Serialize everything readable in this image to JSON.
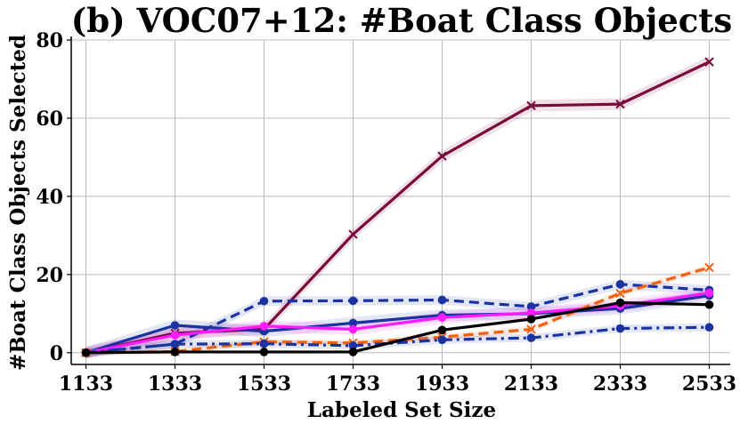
{
  "chart_data": {
    "type": "line",
    "title": "(b) VOC07+12: #Boat Class Objects",
    "xlabel": "Labeled Set Size",
    "ylabel": "#Boat Class Objects Selected",
    "x": [
      1133,
      1333,
      1533,
      1733,
      1933,
      2133,
      2333,
      2533
    ],
    "x_tick_labels": [
      "1133",
      "1333",
      "1533",
      "1733",
      "1933",
      "2133",
      "2333",
      "2533"
    ],
    "ylim": [
      -3,
      80
    ],
    "y_ticks": [
      0,
      20,
      40,
      60,
      80
    ],
    "y_tick_labels": [
      "0",
      "20",
      "40",
      "60",
      "80"
    ],
    "grid": true,
    "legend": "none",
    "series": [
      {
        "color": "#7a0a3c",
        "line": "solid",
        "marker": "x",
        "band": 1.5,
        "values": [
          0,
          5.0,
          6.0,
          30.3,
          50.3,
          63.2,
          63.6,
          74.4
        ]
      },
      {
        "color": "#1a33a0",
        "line": "dashed",
        "marker": "o",
        "band": 1.2,
        "values": [
          0,
          2.2,
          13.2,
          13.3,
          13.5,
          11.8,
          17.5,
          16.0
        ]
      },
      {
        "color": "#1a33a0",
        "line": "solid",
        "marker": "o",
        "band": 1.5,
        "values": [
          0,
          7.0,
          5.5,
          7.6,
          9.6,
          10.0,
          11.3,
          14.6
        ]
      },
      {
        "color": "#ff1aff",
        "line": "solid",
        "marker": "o",
        "band": 1.5,
        "values": [
          0,
          4.5,
          6.8,
          6.0,
          9.0,
          10.2,
          12.0,
          15.3
        ]
      },
      {
        "color": "#f06010",
        "line": "dashed",
        "marker": "x",
        "band": 0.8,
        "values": [
          0,
          0.3,
          2.8,
          2.5,
          4.0,
          6.0,
          15.2,
          21.8
        ]
      },
      {
        "color": "#1a33a0",
        "line": "dashdot",
        "marker": "o",
        "band": 1.0,
        "values": [
          0,
          2.2,
          2.3,
          1.8,
          3.3,
          3.8,
          6.2,
          6.5
        ]
      },
      {
        "color": "#000000",
        "line": "solid",
        "marker": "o",
        "band": 0,
        "values": [
          0,
          0.2,
          0.2,
          0.2,
          5.8,
          8.6,
          12.8,
          12.3
        ]
      }
    ]
  }
}
